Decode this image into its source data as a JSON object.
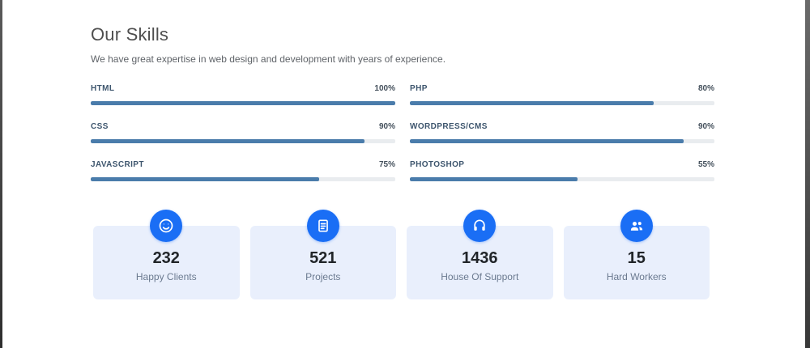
{
  "header": {
    "title": "Our Skills",
    "subtitle": "We have great expertise in web design and development with years of experience."
  },
  "skills": {
    "left": [
      {
        "label": "HTML",
        "percent_label": "100%",
        "value": 100
      },
      {
        "label": "CSS",
        "percent_label": "90%",
        "value": 90
      },
      {
        "label": "JAVASCRIPT",
        "percent_label": "75%",
        "value": 75
      }
    ],
    "right": [
      {
        "label": "PHP",
        "percent_label": "80%",
        "value": 80
      },
      {
        "label": "WORDPRESS/CMS",
        "percent_label": "90%",
        "value": 90
      },
      {
        "label": "PHOTOSHOP",
        "percent_label": "55%",
        "value": 55
      }
    ]
  },
  "stats": [
    {
      "icon": "smiley-icon",
      "value": "232",
      "label": "Happy Clients"
    },
    {
      "icon": "clipboard-list-icon",
      "value": "521",
      "label": "Projects"
    },
    {
      "icon": "headset-icon",
      "value": "1436",
      "label": "House Of Support"
    },
    {
      "icon": "users-icon",
      "value": "15",
      "label": "Hard Workers"
    }
  ],
  "colors": {
    "bar_fill": "#4a7cab",
    "bar_track": "#e9ecef",
    "icon_circle": "#1a6ef5",
    "card_bg": "#e9effc"
  }
}
